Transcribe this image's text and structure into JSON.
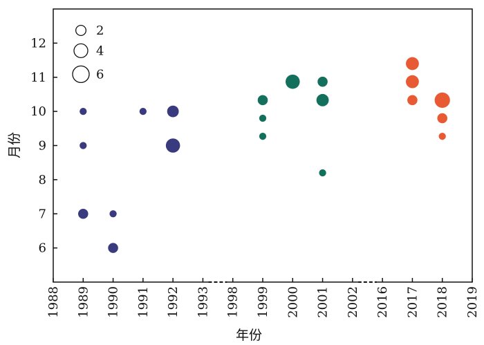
{
  "colors": {
    "series_1989_1992": "#3a3a7e",
    "series_1999_2001": "#12705c",
    "series_2017_2018": "#e85a33",
    "axis": "#111111"
  },
  "chart_data": {
    "type": "scatter",
    "xlabel": "年份",
    "ylabel": "月份",
    "ylim": [
      5,
      13
    ],
    "x_ticks": [
      "1988",
      "1989",
      "1990",
      "1991",
      "1992",
      "1993",
      "1998",
      "1999",
      "2000",
      "2001",
      "2002",
      "2016",
      "2017",
      "2018",
      "2019"
    ],
    "y_ticks": [
      6,
      7,
      8,
      9,
      10,
      11,
      12
    ],
    "axis_breaks": [
      [
        "1993",
        "1998"
      ],
      [
        "2002",
        "2016"
      ]
    ],
    "size_legend": [
      {
        "label": "2",
        "value": 2
      },
      {
        "label": "4",
        "value": 4
      },
      {
        "label": "6",
        "value": 6
      }
    ],
    "legend_position": "top-left",
    "grid": false,
    "points": [
      {
        "x": "1989",
        "y": 10.0,
        "size": 1.5,
        "group": "series_1989_1992"
      },
      {
        "x": "1989",
        "y": 9.0,
        "size": 1.5,
        "group": "series_1989_1992"
      },
      {
        "x": "1989",
        "y": 7.0,
        "size": 3,
        "group": "series_1989_1992"
      },
      {
        "x": "1990",
        "y": 7.0,
        "size": 1.5,
        "group": "series_1989_1992"
      },
      {
        "x": "1990",
        "y": 6.0,
        "size": 3,
        "group": "series_1989_1992"
      },
      {
        "x": "1991",
        "y": 10.0,
        "size": 1.5,
        "group": "series_1989_1992"
      },
      {
        "x": "1992",
        "y": 10.0,
        "size": 4,
        "group": "series_1989_1992"
      },
      {
        "x": "1992",
        "y": 9.0,
        "size": 6,
        "group": "series_1989_1992"
      },
      {
        "x": "1999",
        "y": 10.33,
        "size": 3,
        "group": "series_1999_2001"
      },
      {
        "x": "1999",
        "y": 9.8,
        "size": 1.5,
        "group": "series_1999_2001"
      },
      {
        "x": "1999",
        "y": 9.27,
        "size": 1.5,
        "group": "series_1999_2001"
      },
      {
        "x": "2000",
        "y": 10.87,
        "size": 6,
        "group": "series_1999_2001"
      },
      {
        "x": "2001",
        "y": 10.87,
        "size": 3,
        "group": "series_1999_2001"
      },
      {
        "x": "2001",
        "y": 10.33,
        "size": 4.5,
        "group": "series_1999_2001"
      },
      {
        "x": "2001",
        "y": 8.2,
        "size": 1.5,
        "group": "series_1999_2001"
      },
      {
        "x": "2017",
        "y": 11.4,
        "size": 5,
        "group": "series_2017_2018"
      },
      {
        "x": "2017",
        "y": 10.87,
        "size": 5,
        "group": "series_2017_2018"
      },
      {
        "x": "2017",
        "y": 10.33,
        "size": 3,
        "group": "series_2017_2018"
      },
      {
        "x": "2018",
        "y": 10.33,
        "size": 7,
        "group": "series_2017_2018"
      },
      {
        "x": "2018",
        "y": 9.8,
        "size": 3,
        "group": "series_2017_2018"
      },
      {
        "x": "2018",
        "y": 9.27,
        "size": 1.5,
        "group": "series_2017_2018"
      }
    ]
  }
}
